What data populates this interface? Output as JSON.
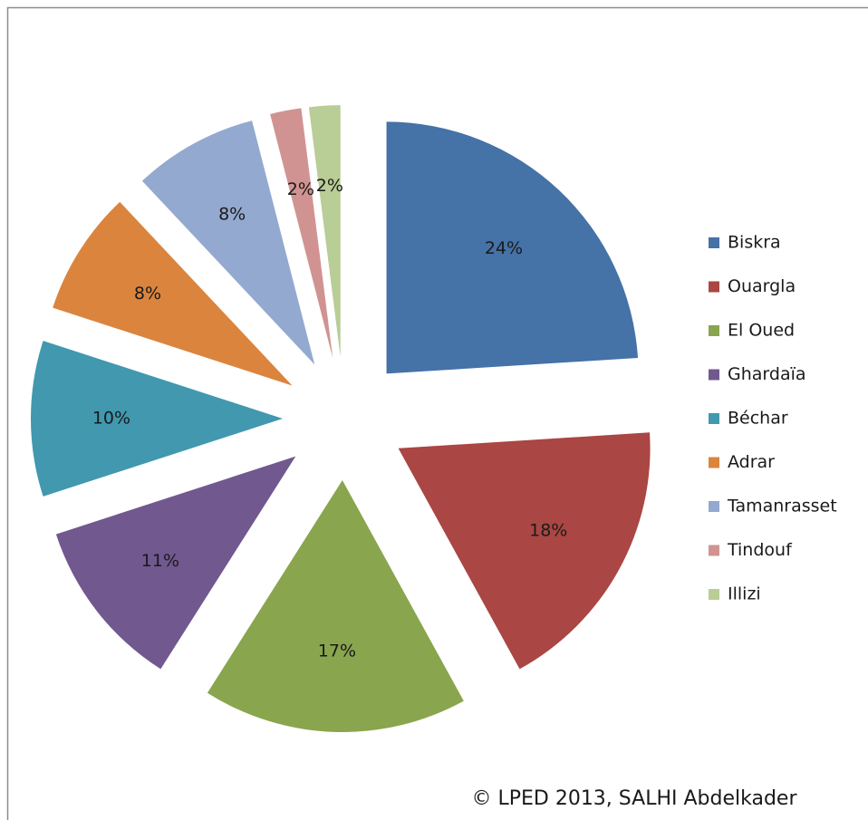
{
  "chart_data": {
    "type": "pie",
    "categories": [
      "Biskra",
      "Ouargla",
      "El Oued",
      "Ghardaïa",
      "Béchar",
      "Adrar",
      "Tamanrasset",
      "Tindouf",
      "Illizi"
    ],
    "values": [
      24,
      18,
      17,
      11,
      10,
      8,
      8,
      2,
      2
    ],
    "value_labels": [
      "24%",
      "18%",
      "17%",
      "11%",
      "10%",
      "8%",
      "8%",
      "2%",
      "2%"
    ],
    "colors": [
      "#4572a7",
      "#aa4643",
      "#89a54e",
      "#71588f",
      "#4198af",
      "#db843d",
      "#93a9cf",
      "#d19392",
      "#b9cd96"
    ],
    "legend": "right",
    "exploded": true,
    "source": "© LPED 2013, SALHI Abdelkader"
  }
}
